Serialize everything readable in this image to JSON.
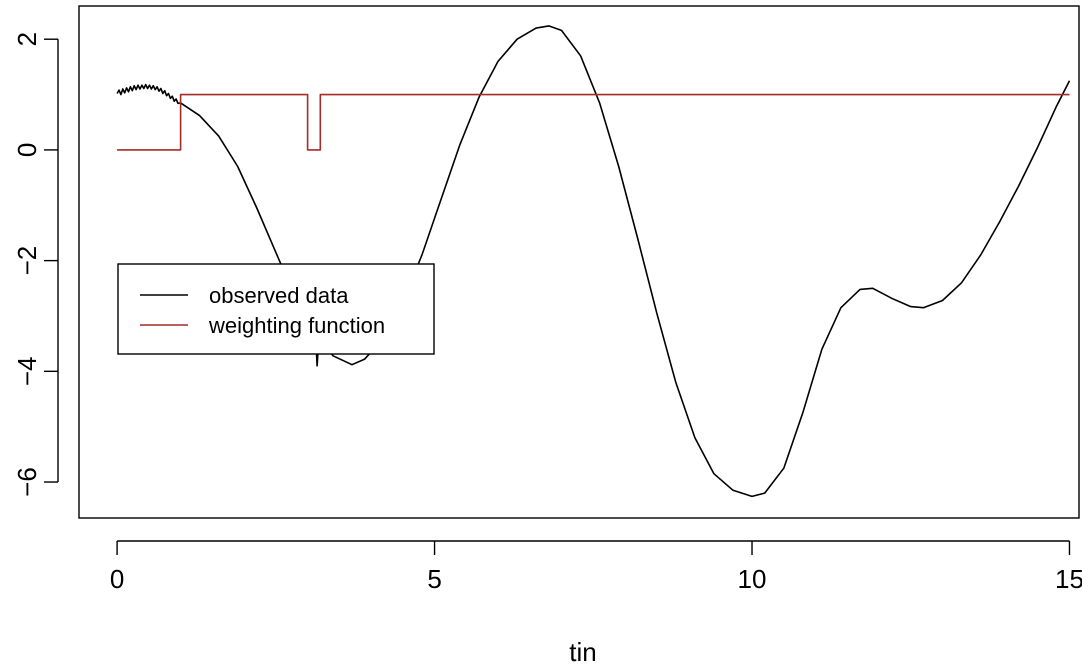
{
  "chart_data": {
    "type": "line",
    "title": "",
    "xlabel": "tin",
    "ylabel": "",
    "xlim": [
      -0.6,
      15.15
    ],
    "ylim": [
      -6.65,
      2.6
    ],
    "xticks": [
      0,
      5,
      10,
      15
    ],
    "xtick_labels": [
      "0",
      "5",
      "10",
      "15"
    ],
    "yticks": [
      2,
      0,
      -2,
      -4,
      -6
    ],
    "ytick_labels": [
      "2",
      "0",
      "−2",
      "−4",
      "−6"
    ],
    "grid": false,
    "legend_position": "left",
    "series": [
      {
        "name": "observed data",
        "color": "#000000",
        "points": [
          [
            0.0,
            1.02
          ],
          [
            0.03,
            1.08
          ],
          [
            0.06,
            1.0
          ],
          [
            0.09,
            1.1
          ],
          [
            0.12,
            1.03
          ],
          [
            0.15,
            1.12
          ],
          [
            0.18,
            1.05
          ],
          [
            0.21,
            1.14
          ],
          [
            0.24,
            1.07
          ],
          [
            0.27,
            1.16
          ],
          [
            0.3,
            1.09
          ],
          [
            0.33,
            1.17
          ],
          [
            0.36,
            1.1
          ],
          [
            0.39,
            1.17
          ],
          [
            0.42,
            1.11
          ],
          [
            0.45,
            1.18
          ],
          [
            0.48,
            1.11
          ],
          [
            0.51,
            1.17
          ],
          [
            0.54,
            1.1
          ],
          [
            0.57,
            1.16
          ],
          [
            0.6,
            1.09
          ],
          [
            0.63,
            1.14
          ],
          [
            0.66,
            1.06
          ],
          [
            0.69,
            1.11
          ],
          [
            0.72,
            1.02
          ],
          [
            0.75,
            1.07
          ],
          [
            0.78,
            0.98
          ],
          [
            0.81,
            1.02
          ],
          [
            0.84,
            0.93
          ],
          [
            0.87,
            0.97
          ],
          [
            0.9,
            0.88
          ],
          [
            0.93,
            0.92
          ],
          [
            0.96,
            0.84
          ],
          [
            1.0,
            0.85
          ],
          [
            1.3,
            0.62
          ],
          [
            1.6,
            0.25
          ],
          [
            1.9,
            -0.3
          ],
          [
            2.2,
            -1.05
          ],
          [
            2.5,
            -1.85
          ],
          [
            2.8,
            -2.65
          ],
          [
            3.0,
            -3.15
          ],
          [
            3.0,
            -3.15
          ],
          [
            3.03,
            -3.45
          ],
          [
            3.06,
            -3.05
          ],
          [
            3.09,
            -3.65
          ],
          [
            3.12,
            -3.15
          ],
          [
            3.15,
            -3.9
          ],
          [
            3.18,
            -3.35
          ],
          [
            3.2,
            -3.4
          ],
          [
            3.4,
            -3.72
          ],
          [
            3.7,
            -3.88
          ],
          [
            3.9,
            -3.78
          ],
          [
            4.2,
            -3.4
          ],
          [
            4.5,
            -2.75
          ],
          [
            4.8,
            -1.9
          ],
          [
            5.1,
            -0.9
          ],
          [
            5.4,
            0.1
          ],
          [
            5.7,
            0.95
          ],
          [
            6.0,
            1.6
          ],
          [
            6.3,
            2.0
          ],
          [
            6.6,
            2.2
          ],
          [
            6.8,
            2.24
          ],
          [
            7.0,
            2.16
          ],
          [
            7.3,
            1.7
          ],
          [
            7.6,
            0.85
          ],
          [
            7.9,
            -0.3
          ],
          [
            8.2,
            -1.6
          ],
          [
            8.5,
            -2.95
          ],
          [
            8.8,
            -4.2
          ],
          [
            9.1,
            -5.2
          ],
          [
            9.4,
            -5.85
          ],
          [
            9.7,
            -6.15
          ],
          [
            10.0,
            -6.26
          ],
          [
            10.2,
            -6.2
          ],
          [
            10.5,
            -5.75
          ],
          [
            10.8,
            -4.75
          ],
          [
            11.1,
            -3.6
          ],
          [
            11.4,
            -2.85
          ],
          [
            11.7,
            -2.52
          ],
          [
            11.9,
            -2.5
          ],
          [
            12.2,
            -2.68
          ],
          [
            12.5,
            -2.83
          ],
          [
            12.7,
            -2.85
          ],
          [
            13.0,
            -2.72
          ],
          [
            13.3,
            -2.4
          ],
          [
            13.6,
            -1.9
          ],
          [
            13.9,
            -1.3
          ],
          [
            14.2,
            -0.65
          ],
          [
            14.5,
            0.05
          ],
          [
            14.8,
            0.8
          ],
          [
            15.0,
            1.25
          ]
        ]
      },
      {
        "name": "weighting function",
        "color": "#a52a2a",
        "points": [
          [
            0,
            0
          ],
          [
            1,
            0
          ],
          [
            1,
            1
          ],
          [
            3,
            1
          ],
          [
            3,
            0
          ],
          [
            3.2,
            0
          ],
          [
            3.2,
            1
          ],
          [
            15,
            1
          ]
        ]
      }
    ]
  }
}
